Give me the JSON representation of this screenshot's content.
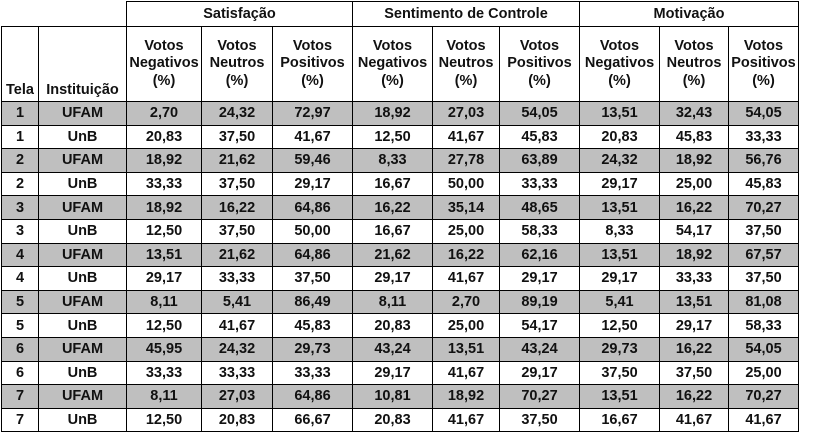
{
  "table": {
    "groups": [
      "Satisfação",
      "Sentimento de Controle",
      "Motivação"
    ],
    "label_headers": [
      "Tela",
      "Instituição"
    ],
    "sub_headers": [
      [
        "Votos",
        "Negativos",
        "(%)"
      ],
      [
        "Votos",
        "Neutros",
        "(%)"
      ],
      [
        "Votos",
        "Positivos",
        "(%)"
      ]
    ],
    "rows": [
      {
        "tela": "1",
        "inst": "UFAM",
        "values": [
          "2,70",
          "24,32",
          "72,97",
          "18,92",
          "27,03",
          "54,05",
          "13,51",
          "32,43",
          "54,05"
        ]
      },
      {
        "tela": "1",
        "inst": "UnB",
        "values": [
          "20,83",
          "37,50",
          "41,67",
          "12,50",
          "41,67",
          "45,83",
          "20,83",
          "45,83",
          "33,33"
        ]
      },
      {
        "tela": "2",
        "inst": "UFAM",
        "values": [
          "18,92",
          "21,62",
          "59,46",
          "8,33",
          "27,78",
          "63,89",
          "24,32",
          "18,92",
          "56,76"
        ]
      },
      {
        "tela": "2",
        "inst": "UnB",
        "values": [
          "33,33",
          "37,50",
          "29,17",
          "16,67",
          "50,00",
          "33,33",
          "29,17",
          "25,00",
          "45,83"
        ]
      },
      {
        "tela": "3",
        "inst": "UFAM",
        "values": [
          "18,92",
          "16,22",
          "64,86",
          "16,22",
          "35,14",
          "48,65",
          "13,51",
          "16,22",
          "70,27"
        ]
      },
      {
        "tela": "3",
        "inst": "UnB",
        "values": [
          "12,50",
          "37,50",
          "50,00",
          "16,67",
          "25,00",
          "58,33",
          "8,33",
          "54,17",
          "37,50"
        ]
      },
      {
        "tela": "4",
        "inst": "UFAM",
        "values": [
          "13,51",
          "21,62",
          "64,86",
          "21,62",
          "16,22",
          "62,16",
          "13,51",
          "18,92",
          "67,57"
        ]
      },
      {
        "tela": "4",
        "inst": "UnB",
        "values": [
          "29,17",
          "33,33",
          "37,50",
          "29,17",
          "41,67",
          "29,17",
          "29,17",
          "33,33",
          "37,50"
        ]
      },
      {
        "tela": "5",
        "inst": "UFAM",
        "values": [
          "8,11",
          "5,41",
          "86,49",
          "8,11",
          "2,70",
          "89,19",
          "5,41",
          "13,51",
          "81,08"
        ]
      },
      {
        "tela": "5",
        "inst": "UnB",
        "values": [
          "12,50",
          "41,67",
          "45,83",
          "20,83",
          "25,00",
          "54,17",
          "12,50",
          "29,17",
          "58,33"
        ]
      },
      {
        "tela": "6",
        "inst": "UFAM",
        "values": [
          "45,95",
          "24,32",
          "29,73",
          "43,24",
          "13,51",
          "43,24",
          "29,73",
          "16,22",
          "54,05"
        ]
      },
      {
        "tela": "6",
        "inst": "UnB",
        "values": [
          "33,33",
          "33,33",
          "33,33",
          "29,17",
          "41,67",
          "29,17",
          "37,50",
          "37,50",
          "25,00"
        ]
      },
      {
        "tela": "7",
        "inst": "UFAM",
        "values": [
          "8,11",
          "27,03",
          "64,86",
          "10,81",
          "18,92",
          "70,27",
          "13,51",
          "16,22",
          "70,27"
        ]
      },
      {
        "tela": "7",
        "inst": "UnB",
        "values": [
          "12,50",
          "20,83",
          "66,67",
          "20,83",
          "41,67",
          "37,50",
          "16,67",
          "41,67",
          "41,67"
        ]
      }
    ]
  }
}
